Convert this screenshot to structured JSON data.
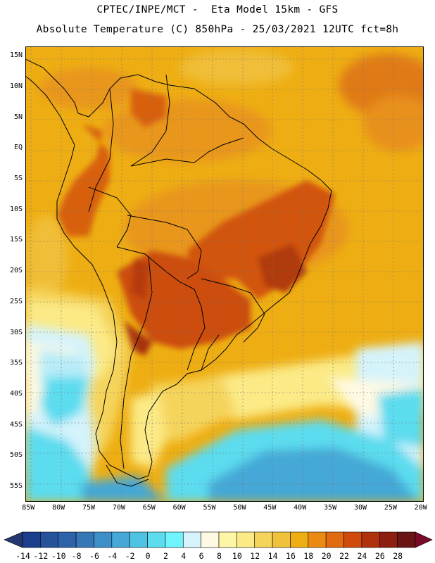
{
  "header": {
    "line1": "CPTEC/INPE/MCT -  Eta Model 15km - GFS",
    "line2": "Absolute Temperature (C) 850hPa - 25/03/2021 12UTC fct=8h"
  },
  "map": {
    "lat_labels": [
      "15N",
      "10N",
      "5N",
      "EQ",
      "5S",
      "10S",
      "15S",
      "20S",
      "25S",
      "30S",
      "35S",
      "40S",
      "45S",
      "50S",
      "55S"
    ],
    "lon_labels": [
      "85W",
      "80W",
      "75W",
      "70W",
      "65W",
      "60W",
      "55W",
      "50W",
      "45W",
      "40W",
      "35W",
      "30W",
      "25W",
      "20W"
    ],
    "extent": {
      "lon_min": -85.5,
      "lon_max": -19.5,
      "lat_min": -57.5,
      "lat_max": 16.5
    }
  },
  "colorbar": {
    "labels": [
      "-14",
      "-12",
      "-10",
      "-8",
      "-6",
      "-4",
      "-2",
      "0",
      "2",
      "4",
      "6",
      "8",
      "10",
      "12",
      "14",
      "16",
      "18",
      "20",
      "22",
      "24",
      "26",
      "28"
    ],
    "colors": [
      "#1a3d8c",
      "#26529b",
      "#2e62a8",
      "#3677b8",
      "#3c8fc9",
      "#45a8d6",
      "#4ec3e3",
      "#5cdcef",
      "#70f4fb",
      "#d4f3fb",
      "#fef9e3",
      "#fdf6a6",
      "#fbea86",
      "#f5d45c",
      "#f0c23c",
      "#eeae13",
      "#ea8a12",
      "#e26a0f",
      "#cf4a0b",
      "#b0320d",
      "#8c1f12",
      "#6b1414"
    ],
    "under_color": "#22386e",
    "over_color": "#7a0a2a"
  }
}
